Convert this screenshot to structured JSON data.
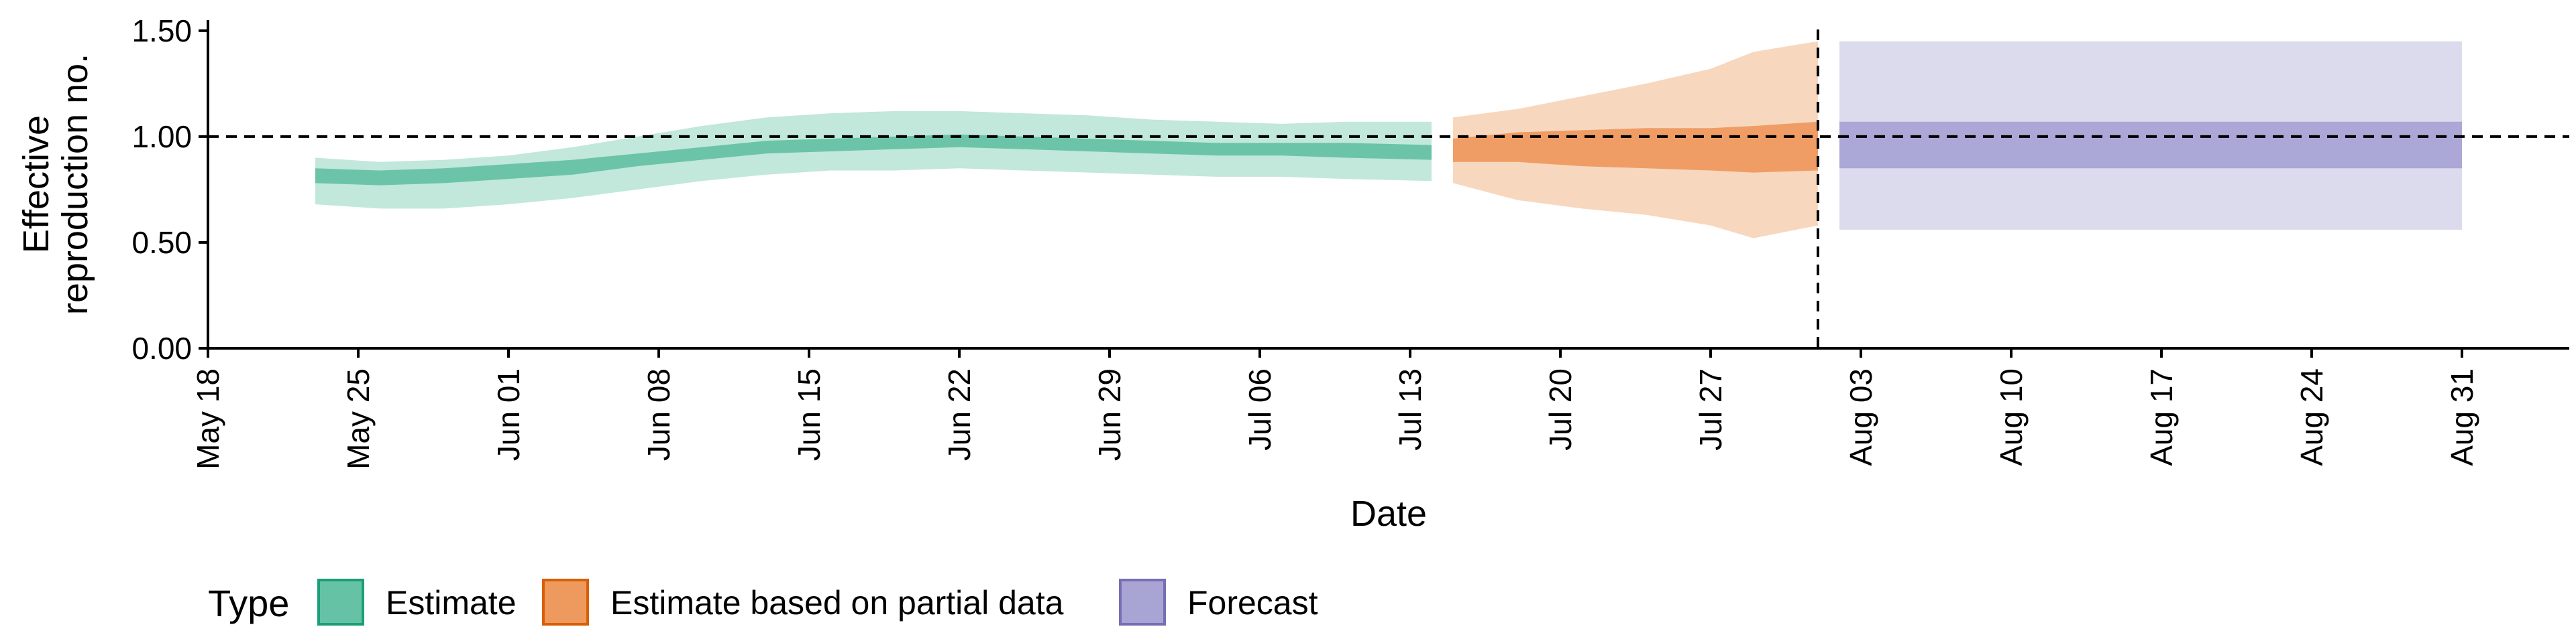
{
  "chart_data": {
    "type": "area",
    "title": "",
    "xlabel": "Date",
    "ylabel": [
      "Effective",
      "reproduction no."
    ],
    "x_type": "date",
    "year": 2020,
    "xlim": [
      "2020-05-18",
      "2020-09-05"
    ],
    "ylim": [
      0,
      1.55
    ],
    "x_ticks": [
      {
        "date": "2020-05-18",
        "label": "May 18"
      },
      {
        "date": "2020-05-25",
        "label": "May 25"
      },
      {
        "date": "2020-06-01",
        "label": "Jun 01"
      },
      {
        "date": "2020-06-08",
        "label": "Jun 08"
      },
      {
        "date": "2020-06-15",
        "label": "Jun 15"
      },
      {
        "date": "2020-06-22",
        "label": "Jun 22"
      },
      {
        "date": "2020-06-29",
        "label": "Jun 29"
      },
      {
        "date": "2020-07-06",
        "label": "Jul 06"
      },
      {
        "date": "2020-07-13",
        "label": "Jul 13"
      },
      {
        "date": "2020-07-20",
        "label": "Jul 20"
      },
      {
        "date": "2020-07-27",
        "label": "Jul 27"
      },
      {
        "date": "2020-08-03",
        "label": "Aug 03"
      },
      {
        "date": "2020-08-10",
        "label": "Aug 10"
      },
      {
        "date": "2020-08-17",
        "label": "Aug 17"
      },
      {
        "date": "2020-08-24",
        "label": "Aug 24"
      },
      {
        "date": "2020-08-31",
        "label": "Aug 31"
      }
    ],
    "y_ticks": [
      {
        "value": 0,
        "label": "0.00"
      },
      {
        "value": 0.5,
        "label": "0.50"
      },
      {
        "value": 1.0,
        "label": "1.00"
      },
      {
        "value": 1.5,
        "label": "1.50"
      }
    ],
    "reference_line_y": 1.0,
    "vertical_line_date": "2020-08-01",
    "legend": {
      "title": "Type",
      "position": "bottom-left",
      "entries": [
        "Estimate",
        "Estimate based on partial data",
        "Forecast"
      ]
    },
    "grid": false,
    "series": [
      {
        "name": "Estimate",
        "fill": "#66c2a5",
        "edge": "#1b9e77",
        "x": [
          "2020-05-23",
          "2020-05-26",
          "2020-05-29",
          "2020-06-01",
          "2020-06-04",
          "2020-06-07",
          "2020-06-10",
          "2020-06-13",
          "2020-06-16",
          "2020-06-19",
          "2020-06-22",
          "2020-06-25",
          "2020-06-28",
          "2020-07-01",
          "2020-07-04",
          "2020-07-07",
          "2020-07-10",
          "2020-07-14"
        ],
        "lower90": [
          0.68,
          0.66,
          0.66,
          0.68,
          0.71,
          0.75,
          0.79,
          0.82,
          0.84,
          0.84,
          0.85,
          0.84,
          0.83,
          0.82,
          0.81,
          0.81,
          0.8,
          0.79
        ],
        "upper90": [
          0.9,
          0.88,
          0.89,
          0.91,
          0.95,
          1.0,
          1.05,
          1.09,
          1.11,
          1.12,
          1.12,
          1.11,
          1.1,
          1.08,
          1.07,
          1.06,
          1.07,
          1.07
        ],
        "lower50": [
          0.78,
          0.77,
          0.78,
          0.8,
          0.82,
          0.86,
          0.89,
          0.92,
          0.93,
          0.94,
          0.95,
          0.94,
          0.93,
          0.92,
          0.91,
          0.91,
          0.9,
          0.89
        ],
        "upper50": [
          0.85,
          0.84,
          0.85,
          0.87,
          0.89,
          0.92,
          0.95,
          0.98,
          0.99,
          1.0,
          1.01,
          1.0,
          0.99,
          0.98,
          0.97,
          0.97,
          0.97,
          0.96
        ]
      },
      {
        "name": "Estimate based on partial data",
        "fill": "#ee9a5f",
        "edge": "#d95f02",
        "x": [
          "2020-07-15",
          "2020-07-18",
          "2020-07-21",
          "2020-07-24",
          "2020-07-27",
          "2020-07-29",
          "2020-08-01"
        ],
        "lower90": [
          0.78,
          0.7,
          0.66,
          0.63,
          0.58,
          0.52,
          0.58
        ],
        "upper90": [
          1.09,
          1.13,
          1.19,
          1.25,
          1.32,
          1.4,
          1.45
        ],
        "lower50": [
          0.88,
          0.88,
          0.86,
          0.85,
          0.84,
          0.83,
          0.84
        ],
        "upper50": [
          0.99,
          1.02,
          1.03,
          1.04,
          1.04,
          1.05,
          1.07
        ]
      },
      {
        "name": "Forecast",
        "fill": "#a8a4d4",
        "edge": "#7570b3",
        "x": [
          "2020-08-02",
          "2020-08-31"
        ],
        "lower90": [
          0.56,
          0.56
        ],
        "upper90": [
          1.45,
          1.45
        ],
        "lower50": [
          0.85,
          0.85
        ],
        "upper50": [
          1.07,
          1.07
        ]
      }
    ]
  }
}
